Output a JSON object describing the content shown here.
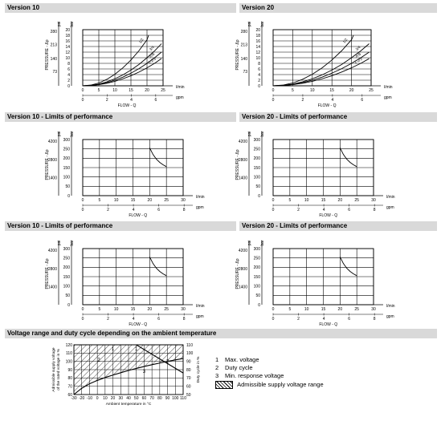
{
  "headers": [
    "Version 10",
    "Version 20",
    "Version 10 - Limits of performance",
    "Version 20 - Limits of performance",
    "Version 10 - Limits of performance",
    "Version 20 - Limits of performance",
    "Voltage range and duty cycle depending on the ambient temperature"
  ],
  "units": {
    "psi": "psi",
    "bar": "bar",
    "lmin": "l/min",
    "gpm": "gpm"
  },
  "labels": {
    "pressure": "PRESSURE - Δp",
    "flow": "FLOW - Q"
  },
  "legend": {
    "items": [
      {
        "num": "1",
        "text": "Max. voltage"
      },
      {
        "num": "2",
        "text": "Duty cycle"
      },
      {
        "num": "3",
        "text": "Min. response voltage"
      }
    ],
    "hatch_text": "Admissible supply voltage range"
  },
  "chart_data": [
    {
      "type": "line",
      "title": "Version 10",
      "xlabel": "FLOW - Q",
      "ylabel": "PRESSURE - Δp",
      "xlim": [
        0,
        25
      ],
      "ylim": [
        0,
        20
      ],
      "x_ticks": [
        0,
        5,
        10,
        15,
        20,
        25
      ],
      "gpm_ticks": [
        "0",
        "2",
        "4",
        "6"
      ],
      "y_ticks": [
        0,
        2,
        4,
        6,
        8,
        10,
        12,
        14,
        16,
        18,
        20
      ],
      "psi_ticks": [
        "73",
        "140",
        "213",
        "280"
      ],
      "series": [
        {
          "name": "1/2",
          "x": [
            0,
            2.5,
            5,
            7.5,
            10,
            12.5,
            15,
            17.5,
            20,
            20.5
          ],
          "y": [
            0,
            0.25,
            1,
            2.3,
            4.1,
            6.4,
            9.2,
            12.5,
            16.4,
            18
          ]
        },
        {
          "name": "3/4",
          "x": [
            0,
            2.5,
            5,
            7.5,
            10,
            12.5,
            15,
            17.5,
            20,
            22.5,
            24.5
          ],
          "y": [
            0,
            0.15,
            0.6,
            1.4,
            2.5,
            3.9,
            5.6,
            7.6,
            10,
            12.6,
            15
          ]
        },
        {
          "name": "A/B",
          "x": [
            0,
            2.5,
            5,
            7.5,
            10,
            12.5,
            15,
            17.5,
            20,
            22.5,
            24.5
          ],
          "y": [
            0,
            0.12,
            0.48,
            1.1,
            2,
            3.1,
            4.5,
            6.1,
            8,
            10.1,
            12
          ]
        },
        {
          "name": "1-2/3",
          "x": [
            0,
            2.5,
            5,
            7.5,
            10,
            12.5,
            15,
            17.5,
            20,
            22.5,
            24.5
          ],
          "y": [
            0,
            0.1,
            0.4,
            0.9,
            1.6,
            2.5,
            3.6,
            4.9,
            6.4,
            8.1,
            9.7
          ]
        }
      ]
    },
    {
      "type": "line",
      "title": "Version 20",
      "xlabel": "FLOW - Q",
      "ylabel": "PRESSURE - Δp",
      "xlim": [
        0,
        25
      ],
      "ylim": [
        0,
        20
      ],
      "x_ticks": [
        0,
        5,
        10,
        15,
        20,
        25
      ],
      "gpm_ticks": [
        "0",
        "2",
        "4",
        "6"
      ],
      "y_ticks": [
        0,
        2,
        4,
        6,
        8,
        10,
        12,
        14,
        16,
        18,
        20
      ],
      "psi_ticks": [
        "73",
        "140",
        "213",
        "280"
      ],
      "series": [
        {
          "name": "1/2",
          "x": [
            0,
            2.5,
            5,
            7.5,
            10,
            12.5,
            15,
            17.5,
            20,
            20.5
          ],
          "y": [
            0,
            0.25,
            1,
            2.3,
            4.1,
            6.4,
            9.2,
            12.5,
            16.4,
            18
          ]
        },
        {
          "name": "3/4",
          "x": [
            0,
            2.5,
            5,
            7.5,
            10,
            12.5,
            15,
            17.5,
            20,
            22.5,
            24.5
          ],
          "y": [
            0,
            0.15,
            0.6,
            1.4,
            2.5,
            3.9,
            5.6,
            7.6,
            10,
            12.6,
            15
          ]
        },
        {
          "name": "A/B",
          "x": [
            0,
            2.5,
            5,
            7.5,
            10,
            12.5,
            15,
            17.5,
            20,
            22.5,
            24.5
          ],
          "y": [
            0,
            0.12,
            0.48,
            1.1,
            2,
            3.1,
            4.5,
            6.1,
            8,
            10.1,
            12
          ]
        },
        {
          "name": "1-2/3",
          "x": [
            0,
            2.5,
            5,
            7.5,
            10,
            12.5,
            15,
            17.5,
            20,
            22.5,
            24.5
          ],
          "y": [
            0,
            0.1,
            0.4,
            0.9,
            1.6,
            2.5,
            3.6,
            4.9,
            6.4,
            8.1,
            9.7
          ]
        }
      ]
    },
    {
      "type": "line",
      "title": "Version 10 - Limits of performance",
      "xlabel": "FLOW - Q",
      "ylabel": "PRESSURE - Δp",
      "xlim": [
        0,
        30
      ],
      "ylim": [
        0,
        300
      ],
      "x_ticks": [
        0,
        5,
        10,
        15,
        20,
        25,
        30
      ],
      "gpm_ticks": [
        "0",
        "2",
        "4",
        "6",
        "8"
      ],
      "y_ticks": [
        0,
        50,
        100,
        150,
        200,
        250,
        300
      ],
      "psi_ticks": [
        "1400",
        "2800",
        "4200"
      ],
      "series": [
        {
          "x": [
            20,
            21,
            22,
            23,
            24,
            25
          ],
          "y": [
            255,
            220,
            195,
            178,
            165,
            155
          ]
        }
      ]
    },
    {
      "type": "line",
      "title": "Version 20 - Limits of performance",
      "xlabel": "FLOW - Q",
      "ylabel": "PRESSURE - Δp",
      "xlim": [
        0,
        30
      ],
      "ylim": [
        0,
        300
      ],
      "x_ticks": [
        0,
        5,
        10,
        15,
        20,
        25,
        30
      ],
      "gpm_ticks": [
        "0",
        "2",
        "4",
        "6",
        "8"
      ],
      "y_ticks": [
        0,
        50,
        100,
        150,
        200,
        250,
        300
      ],
      "psi_ticks": [
        "1400",
        "2800",
        "4200"
      ],
      "series": [
        {
          "x": [
            20,
            21,
            22,
            23,
            24,
            25
          ],
          "y": [
            255,
            220,
            195,
            178,
            165,
            155
          ]
        }
      ]
    },
    {
      "type": "line",
      "title": "Version 10 - Limits of performance",
      "xlabel": "FLOW - Q",
      "ylabel": "PRESSURE - Δp",
      "xlim": [
        0,
        30
      ],
      "ylim": [
        0,
        300
      ],
      "x_ticks": [
        0,
        5,
        10,
        15,
        20,
        25,
        30
      ],
      "gpm_ticks": [
        "0",
        "2",
        "4",
        "6",
        "8"
      ],
      "y_ticks": [
        0,
        50,
        100,
        150,
        200,
        250,
        300
      ],
      "psi_ticks": [
        "1400",
        "2800",
        "4200"
      ],
      "series": [
        {
          "x": [
            20,
            21,
            22,
            23,
            24,
            25
          ],
          "y": [
            255,
            220,
            195,
            178,
            165,
            155
          ]
        }
      ]
    },
    {
      "type": "line",
      "title": "Version 20 - Limits of performance",
      "xlabel": "FLOW - Q",
      "ylabel": "PRESSURE - Δp",
      "xlim": [
        0,
        30
      ],
      "ylim": [
        0,
        300
      ],
      "x_ticks": [
        0,
        5,
        10,
        15,
        20,
        25,
        30
      ],
      "gpm_ticks": [
        "0",
        "2",
        "4",
        "6",
        "8"
      ],
      "y_ticks": [
        0,
        50,
        100,
        150,
        200,
        250,
        300
      ],
      "psi_ticks": [
        "1400",
        "2800",
        "4200"
      ],
      "series": [
        {
          "x": [
            20,
            21,
            22,
            23,
            24,
            25
          ],
          "y": [
            255,
            220,
            195,
            178,
            165,
            155
          ]
        }
      ]
    },
    {
      "type": "line",
      "title": "Voltage range and duty cycle depending on the ambient temperature",
      "xlabel": "Ambient temperature in °C",
      "ylabel": "Admissible supply voltage of the rated voltage in %",
      "y2label": "Duty cycle in %",
      "xlim": [
        -30,
        110
      ],
      "ylim": [
        60,
        120
      ],
      "y2lim": [
        50,
        110
      ],
      "x_ticks": [
        -30,
        -20,
        -10,
        0,
        10,
        20,
        30,
        40,
        50,
        60,
        70,
        80,
        90,
        100,
        110
      ],
      "y_ticks": [
        60,
        70,
        80,
        90,
        100,
        110,
        120
      ],
      "y2_ticks": [
        50,
        60,
        70,
        80,
        90,
        100,
        110
      ],
      "series": [
        {
          "name": "1",
          "x": [
            -30,
            110
          ],
          "y": [
            120,
            120
          ]
        },
        {
          "name": "2",
          "x": [
            -30,
            50,
            110
          ],
          "y": [
            120,
            120,
            86
          ]
        },
        {
          "name": "3",
          "x": [
            -30,
            -20,
            -10,
            0,
            10,
            20,
            30,
            40,
            50,
            60,
            70,
            80,
            90,
            100,
            110
          ],
          "y": [
            60,
            67.5,
            73,
            77,
            80.5,
            83.5,
            86.3,
            89,
            91.5,
            93.8,
            96,
            98,
            100,
            101.8,
            103.5
          ]
        }
      ],
      "curve_labels": [
        {
          "text": "1",
          "x": 20,
          "y": 115
        },
        {
          "text": "1",
          "x": 50,
          "y": 115
        },
        {
          "text": "2",
          "x": 2,
          "y": 102
        },
        {
          "text": "3",
          "x": 60,
          "y": 88
        },
        {
          "text": "2",
          "x": 90,
          "y": 100
        }
      ]
    }
  ]
}
